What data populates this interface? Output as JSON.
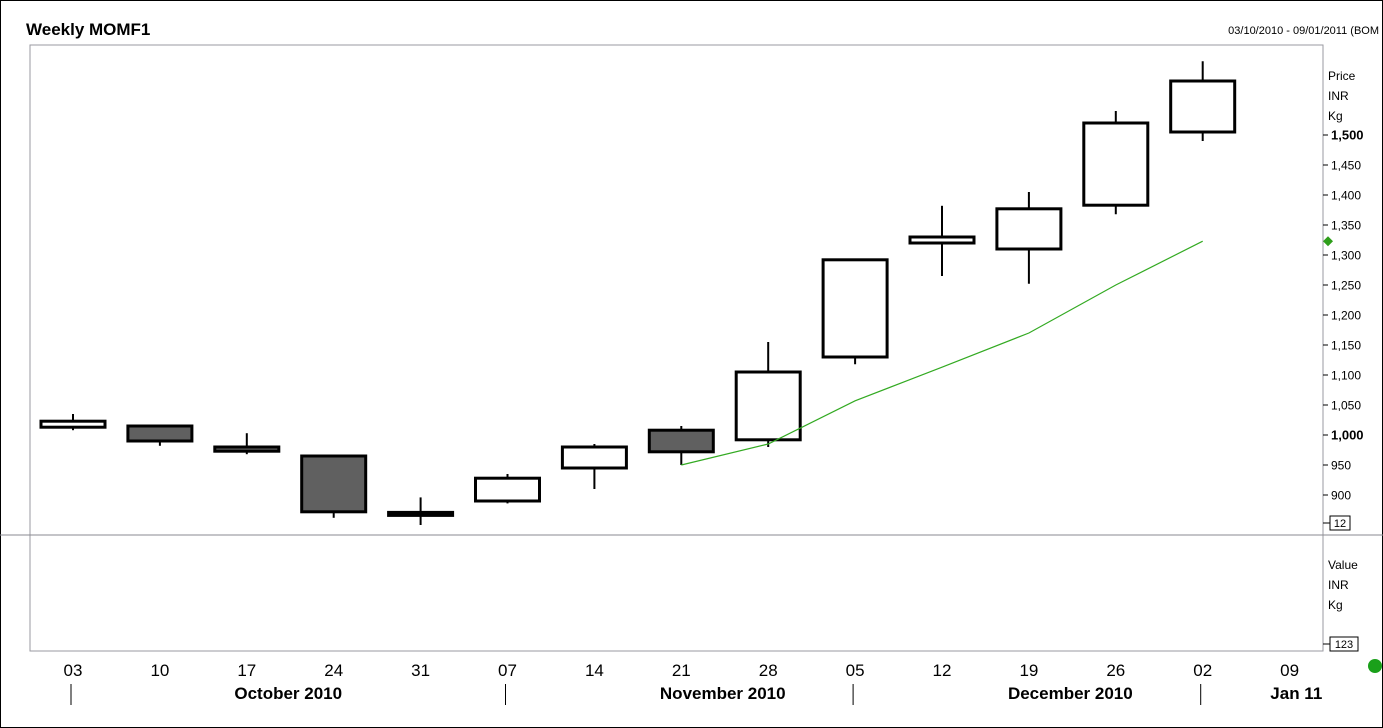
{
  "header": {
    "title": "Weekly MOMF1",
    "date_range": "03/10/2010 - 09/01/2011 (BOM"
  },
  "price_panel": {
    "axis_unit_lines": [
      "Price",
      "INR",
      "Kg"
    ],
    "bottom_box": "12",
    "ma_marker_color": "#2e9e1a"
  },
  "value_panel": {
    "axis_unit_lines": [
      "Value",
      "INR",
      "Kg"
    ],
    "bottom_box": "123"
  },
  "status_dot_color": "#1aa01a",
  "chart_data": {
    "type": "candlestick",
    "title": "Weekly MOMF1",
    "ylabel": "Price INR Kg",
    "ylim": [
      870,
      1547
    ],
    "y_ticks": [
      {
        "value": 1500,
        "label": "1,500",
        "bold": true
      },
      {
        "value": 1450,
        "label": "1,450"
      },
      {
        "value": 1400,
        "label": "1,400"
      },
      {
        "value": 1350,
        "label": "1,350"
      },
      {
        "value": 1300,
        "label": "1,300"
      },
      {
        "value": 1250,
        "label": "1,250"
      },
      {
        "value": 1200,
        "label": "1,200"
      },
      {
        "value": 1150,
        "label": "1,150"
      },
      {
        "value": 1100,
        "label": "1,100"
      },
      {
        "value": 1050,
        "label": "1,050"
      },
      {
        "value": 1000,
        "label": "1,000",
        "bold": true
      },
      {
        "value": 950,
        "label": "950"
      },
      {
        "value": 900,
        "label": "900"
      }
    ],
    "x_day_labels": [
      "03",
      "10",
      "17",
      "24",
      "31",
      "07",
      "14",
      "21",
      "28",
      "05",
      "12",
      "19",
      "26",
      "02",
      "09"
    ],
    "x_month_labels": [
      {
        "label": "October 2010",
        "center_index": 2.5
      },
      {
        "label": "November 2010",
        "center_index": 7.5
      },
      {
        "label": "December 2010",
        "center_index": 11.5
      },
      {
        "label": "Jan 11",
        "center_index": 14.1
      }
    ],
    "x_month_separators": [
      0,
      5,
      9,
      13
    ],
    "candles": [
      {
        "date": "03",
        "open": 1013,
        "high": 1035,
        "low": 1008,
        "close": 1023
      },
      {
        "date": "10",
        "open": 1015,
        "high": 1015,
        "low": 982,
        "close": 990
      },
      {
        "date": "17",
        "open": 980,
        "high": 1003,
        "low": 968,
        "close": 973
      },
      {
        "date": "24",
        "open": 965,
        "high": 965,
        "low": 862,
        "close": 872
      },
      {
        "date": "31",
        "open": 871,
        "high": 896,
        "low": 850,
        "close": 866
      },
      {
        "date": "07",
        "open": 890,
        "high": 935,
        "low": 886,
        "close": 928
      },
      {
        "date": "14",
        "open": 945,
        "high": 985,
        "low": 910,
        "close": 980
      },
      {
        "date": "21",
        "open": 1008,
        "high": 1015,
        "low": 950,
        "close": 972
      },
      {
        "date": "28",
        "open": 992,
        "high": 1155,
        "low": 980,
        "close": 1105
      },
      {
        "date": "05",
        "open": 1130,
        "high": 1292,
        "low": 1118,
        "close": 1292
      },
      {
        "date": "12",
        "open": 1320,
        "high": 1382,
        "low": 1265,
        "close": 1330
      },
      {
        "date": "19",
        "open": 1310,
        "high": 1405,
        "low": 1252,
        "close": 1377
      },
      {
        "date": "26",
        "open": 1383,
        "high": 1540,
        "low": 1368,
        "close": 1520
      },
      {
        "date": "02",
        "open": 1505,
        "high": 1623,
        "low": 1490,
        "close": 1590
      }
    ],
    "series": [
      {
        "type": "line",
        "color": "#33aa22",
        "points": [
          {
            "x": "21",
            "y": 950
          },
          {
            "x": "28",
            "y": 985
          },
          {
            "x": "05",
            "y": 1057
          },
          {
            "x": "12",
            "y": 1113
          },
          {
            "x": "19",
            "y": 1170
          },
          {
            "x": "26",
            "y": 1250
          },
          {
            "x": "02",
            "y": 1323
          }
        ]
      }
    ],
    "grid": false,
    "legend": "none"
  }
}
